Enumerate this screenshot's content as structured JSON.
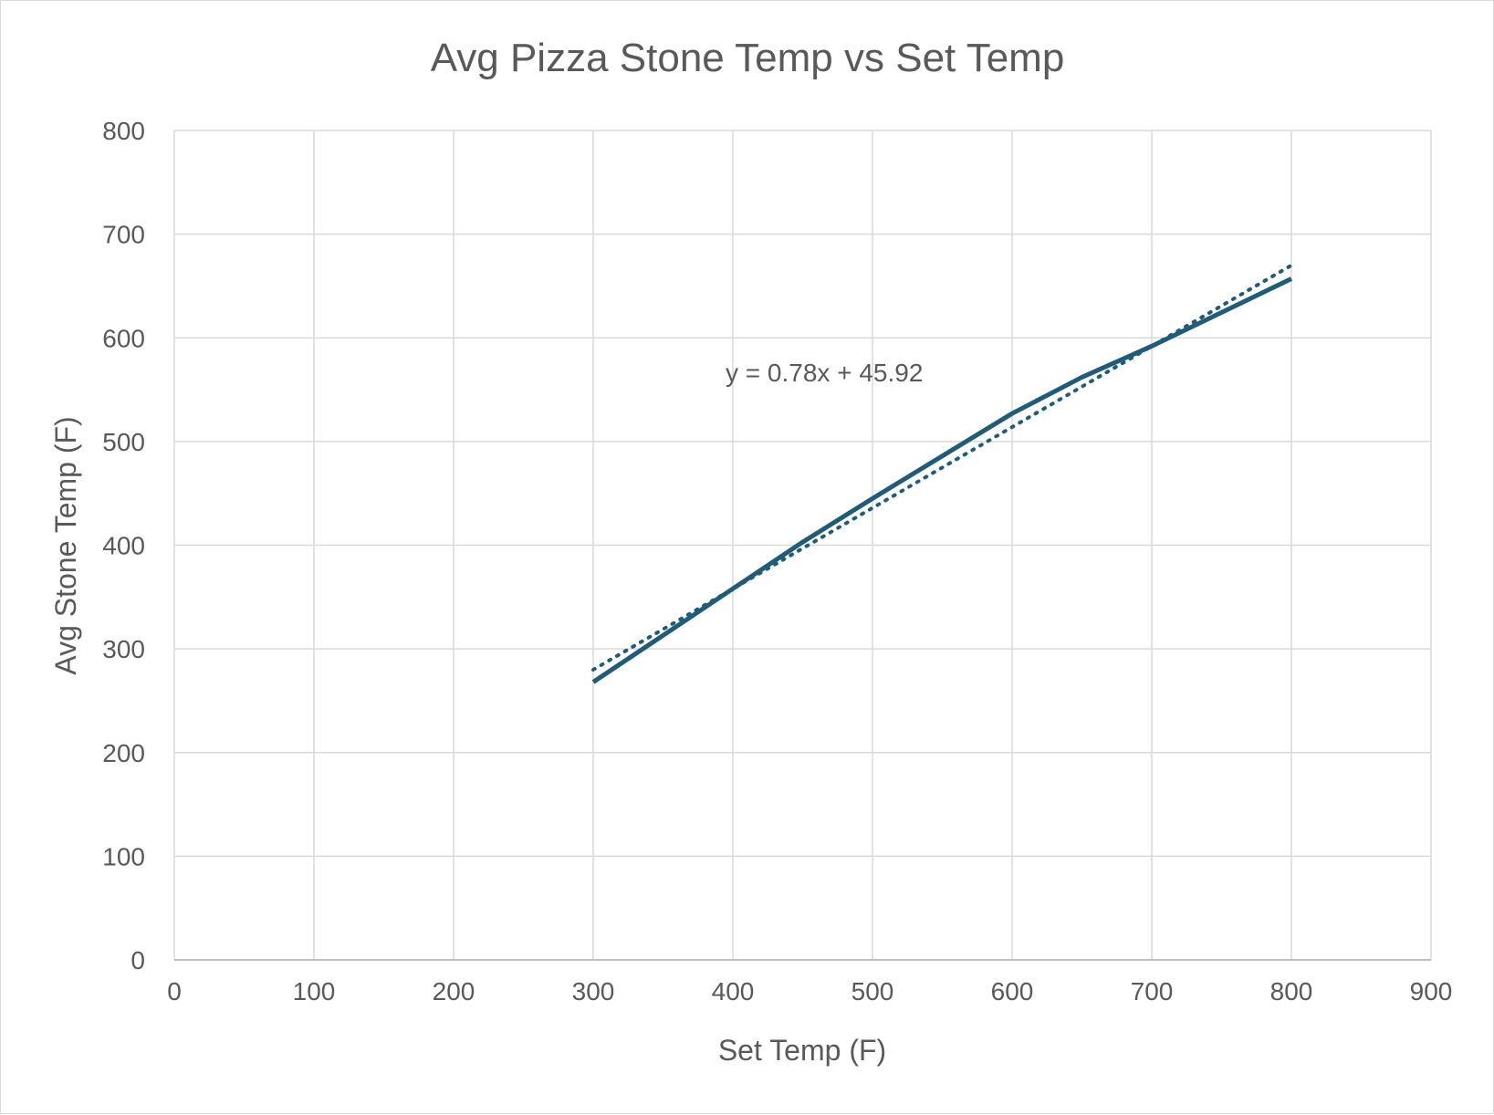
{
  "chart_data": {
    "type": "line",
    "title": "Avg Pizza Stone Temp vs Set Temp",
    "xlabel": "Set Temp (F)",
    "ylabel": "Avg Stone Temp (F)",
    "xlim": [
      0,
      900
    ],
    "ylim": [
      0,
      800
    ],
    "x_ticks": [
      0,
      100,
      200,
      300,
      400,
      500,
      600,
      700,
      800,
      900
    ],
    "y_ticks": [
      0,
      100,
      200,
      300,
      400,
      500,
      600,
      700,
      800
    ],
    "grid": true,
    "legend": "none",
    "series": [
      {
        "x": [
          300,
          400,
          450,
          500,
          600,
          650,
          700,
          800
        ],
        "y": [
          268,
          358,
          403,
          445,
          527,
          562,
          592,
          657
        ],
        "color": "#1f5c7a",
        "style": "solid"
      }
    ],
    "trendline": {
      "equation": "y = 0.78x + 45.92",
      "slope": 0.78,
      "intercept": 45.92,
      "x_range": [
        300,
        800
      ],
      "color": "#1f5c7a",
      "style": "dotted"
    },
    "colors": {
      "grid": "#d9d9d9",
      "text": "#595959"
    }
  }
}
